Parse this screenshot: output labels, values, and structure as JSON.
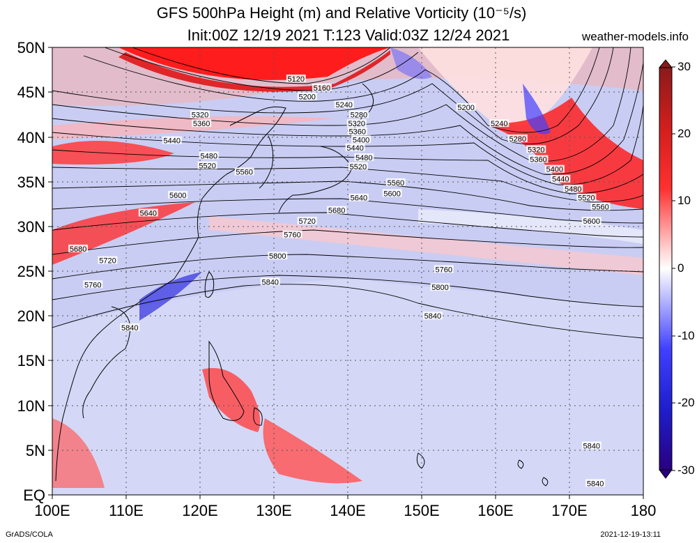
{
  "title_line1": "GFS 500hPa Height (m) and Relative Vorticity (10⁻⁵/s)",
  "title_line2": "Init:00Z 12/19 2021 T:123 Valid:03Z 12/24 2021",
  "site": "weather-models.info",
  "footer_left": "GrADS/COLA",
  "footer_right": "2021-12-19-13:11",
  "map": {
    "lon_range": [
      100,
      180
    ],
    "lat_range": [
      0,
      50
    ],
    "lat_labels": [
      "EQ",
      "5N",
      "10N",
      "15N",
      "20N",
      "25N",
      "30N",
      "35N",
      "40N",
      "45N",
      "50N"
    ],
    "lon_labels": [
      "100E",
      "110E",
      "120E",
      "130E",
      "140E",
      "150E",
      "160E",
      "170E",
      "180"
    ],
    "colorbar": {
      "labels": [
        "30",
        "20",
        "10",
        "0",
        "-10",
        "-20",
        "-30"
      ],
      "range": [
        -30,
        30
      ],
      "colors": {
        "max": "#8b1a1a",
        "high": "#ff0000",
        "zero": "#ffffff",
        "low": "#0000ff",
        "min": "#2a0080"
      }
    },
    "height_contours": [
      {
        "value": "5120",
        "label_lon": 133,
        "label_lat": 46.5
      },
      {
        "value": "5160",
        "label_lon": 136.5,
        "label_lat": 45.5
      },
      {
        "value": "5200",
        "label_lon": 134.5,
        "label_lat": 44.5
      },
      {
        "value": "5200",
        "label_lon": 156,
        "label_lat": 43.3
      },
      {
        "value": "5240",
        "label_lon": 139.5,
        "label_lat": 43.6
      },
      {
        "value": "5240",
        "label_lon": 160.5,
        "label_lat": 41.5
      },
      {
        "value": "5280",
        "label_lon": 141.5,
        "label_lat": 42.5
      },
      {
        "value": "5280",
        "label_lon": 163,
        "label_lat": 39.8
      },
      {
        "value": "5320",
        "label_lon": 120,
        "label_lat": 42.5
      },
      {
        "value": "5320",
        "label_lon": 141.2,
        "label_lat": 41.5
      },
      {
        "value": "5320",
        "label_lon": 165.5,
        "label_lat": 38.6
      },
      {
        "value": "5360",
        "label_lon": 120.2,
        "label_lat": 41.5
      },
      {
        "value": "5360",
        "label_lon": 141.3,
        "label_lat": 40.6
      },
      {
        "value": "5360",
        "label_lon": 165.8,
        "label_lat": 37.5
      },
      {
        "value": "5400",
        "label_lon": 141.8,
        "label_lat": 39.7
      },
      {
        "value": "5400",
        "label_lon": 168,
        "label_lat": 36.4
      },
      {
        "value": "5440",
        "label_lon": 116.2,
        "label_lat": 39.6
      },
      {
        "value": "5440",
        "label_lon": 141,
        "label_lat": 38.8
      },
      {
        "value": "5440",
        "label_lon": 168.8,
        "label_lat": 35.3
      },
      {
        "value": "5480",
        "label_lon": 121.2,
        "label_lat": 37.9
      },
      {
        "value": "5480",
        "label_lon": 142.2,
        "label_lat": 37.7
      },
      {
        "value": "5480",
        "label_lon": 170.5,
        "label_lat": 34.2
      },
      {
        "value": "5520",
        "label_lon": 121,
        "label_lat": 36.8
      },
      {
        "value": "5520",
        "label_lon": 141.4,
        "label_lat": 36.7
      },
      {
        "value": "5520",
        "label_lon": 172.3,
        "label_lat": 33.2
      },
      {
        "value": "5560",
        "label_lon": 126,
        "label_lat": 36.1
      },
      {
        "value": "5560",
        "label_lon": 146.5,
        "label_lat": 34.9
      },
      {
        "value": "5560",
        "label_lon": 174.2,
        "label_lat": 32.2
      },
      {
        "value": "5600",
        "label_lon": 117,
        "label_lat": 33.5
      },
      {
        "value": "5600",
        "label_lon": 146,
        "label_lat": 33.7
      },
      {
        "value": "5600",
        "label_lon": 173,
        "label_lat": 30.6
      },
      {
        "value": "5640",
        "label_lon": 113,
        "label_lat": 31.5
      },
      {
        "value": "5640",
        "label_lon": 141.5,
        "label_lat": 33.2
      },
      {
        "value": "5680",
        "label_lon": 103.5,
        "label_lat": 27.5
      },
      {
        "value": "5680",
        "label_lon": 138.5,
        "label_lat": 31.8
      },
      {
        "value": "5720",
        "label_lon": 107.5,
        "label_lat": 26.2
      },
      {
        "value": "5720",
        "label_lon": 134.5,
        "label_lat": 30.6
      },
      {
        "value": "5760",
        "label_lon": 105.5,
        "label_lat": 23.5
      },
      {
        "value": "5760",
        "label_lon": 132.5,
        "label_lat": 29.1
      },
      {
        "value": "5760",
        "label_lon": 153,
        "label_lat": 25.2
      },
      {
        "value": "5800",
        "label_lon": 130.5,
        "label_lat": 26.7
      },
      {
        "value": "5800",
        "label_lon": 152.5,
        "label_lat": 23.2
      },
      {
        "value": "5840",
        "label_lon": 110.5,
        "label_lat": 18.7
      },
      {
        "value": "5840",
        "label_lon": 129.5,
        "label_lat": 23.8
      },
      {
        "value": "5840",
        "label_lon": 151.5,
        "label_lat": 20
      },
      {
        "value": "5840",
        "label_lon": 173,
        "label_lat": 5.5
      },
      {
        "value": "5840",
        "label_lon": 173.5,
        "label_lat": 1.3
      }
    ]
  }
}
